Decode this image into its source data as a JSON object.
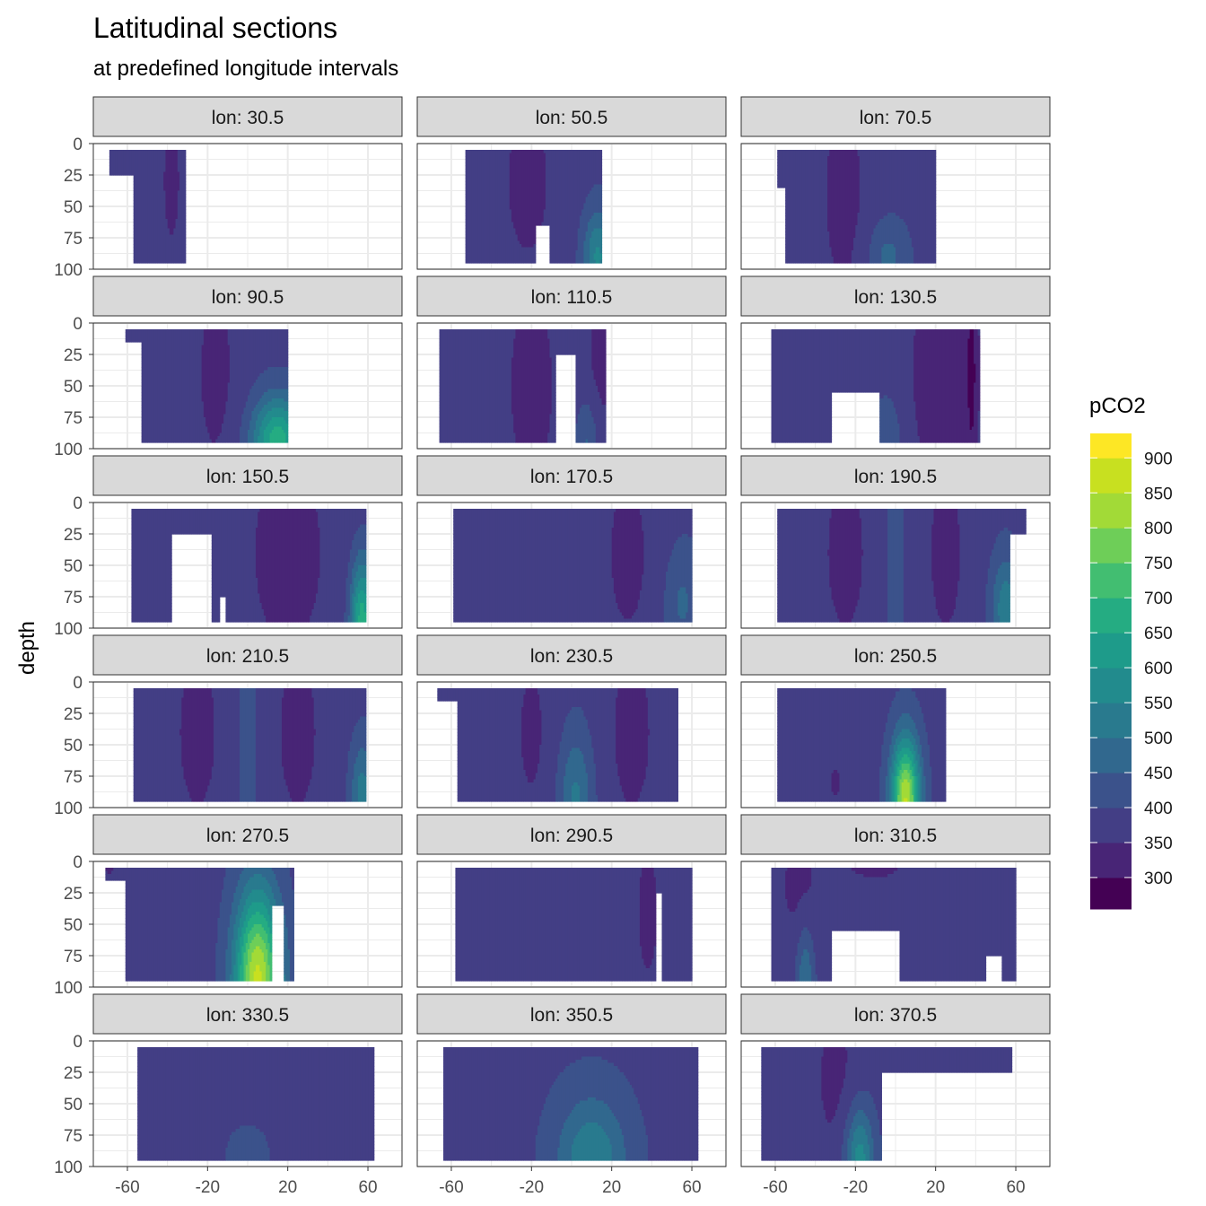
{
  "chart_data": {
    "type": "heatmap",
    "title": "Latitudinal sections",
    "subtitle": "at predefined longitude intervals",
    "xlabel": "",
    "ylabel": "depth",
    "facet_label_prefix": "lon: ",
    "xlim": [
      -77,
      77
    ],
    "ylim": [
      0,
      100
    ],
    "y_reversed": true,
    "x_ticks": [
      -60,
      -20,
      20,
      60
    ],
    "y_ticks": [
      0,
      25,
      50,
      75,
      100
    ],
    "grid": "on",
    "legend": {
      "title": "pCO2",
      "position": "right",
      "breaks": [
        900,
        850,
        800,
        750,
        700,
        650,
        600,
        550,
        500,
        450,
        400,
        350,
        300
      ],
      "colors": [
        "#fde725",
        "#c8e020",
        "#a2da37",
        "#6ece58",
        "#42be71",
        "#25ac82",
        "#1e9b8a",
        "#228b8d",
        "#297a8e",
        "#31688e",
        "#3b528b",
        "#433e85",
        "#482576",
        "#440154"
      ]
    },
    "panels": [
      {
        "lon": "30.5",
        "base": 385,
        "x_min": -69,
        "x_max": -31,
        "max_depth": 95,
        "gaps": [
          {
            "x": [
              -69,
              -57
            ],
            "y": [
              25,
              100
            ]
          }
        ],
        "features": [
          {
            "x": -38,
            "depth": 30,
            "amp": -45,
            "sx": 5,
            "sd": 60
          }
        ]
      },
      {
        "lon": "50.5",
        "base": 390,
        "x_min": -53,
        "x_max": 15,
        "max_depth": 95,
        "gaps": [
          {
            "x": [
              -18,
              -11
            ],
            "y": [
              65,
              100
            ]
          }
        ],
        "features": [
          {
            "x": -22,
            "depth": 30,
            "amp": -50,
            "sx": 14,
            "sd": 80
          },
          {
            "x": 13,
            "depth": 90,
            "amp": 170,
            "sx": 5,
            "sd": 25
          }
        ]
      },
      {
        "lon": "70.5",
        "base": 385,
        "x_min": -59,
        "x_max": 20,
        "max_depth": 95,
        "gaps": [
          {
            "x": [
              -59,
              -55
            ],
            "y": [
              35,
              100
            ]
          }
        ],
        "features": [
          {
            "x": -26,
            "depth": 40,
            "amp": -50,
            "sx": 10,
            "sd": 80
          },
          {
            "x": -4,
            "depth": 90,
            "amp": 80,
            "sx": 7,
            "sd": 20
          }
        ]
      },
      {
        "lon": "90.5",
        "base": 385,
        "x_min": -61,
        "x_max": 20,
        "max_depth": 95,
        "gaps": [
          {
            "x": [
              -61,
              -53
            ],
            "y": [
              15,
              100
            ]
          }
        ],
        "features": [
          {
            "x": -16,
            "depth": 40,
            "amp": -45,
            "sx": 10,
            "sd": 80
          },
          {
            "x": 15,
            "depth": 95,
            "amp": 300,
            "sx": 9,
            "sd": 25
          }
        ]
      },
      {
        "lon": "110.5",
        "base": 385,
        "x_min": -66,
        "x_max": 17,
        "max_depth": 95,
        "gaps": [
          {
            "x": [
              -8,
              2
            ],
            "y": [
              25,
              100
            ]
          }
        ],
        "features": [
          {
            "x": -20,
            "depth": 50,
            "amp": -50,
            "sx": 12,
            "sd": 80
          },
          {
            "x": 14,
            "depth": 40,
            "amp": -45,
            "sx": 6,
            "sd": 80
          },
          {
            "x": 8,
            "depth": 95,
            "amp": 90,
            "sx": 4,
            "sd": 25
          }
        ]
      },
      {
        "lon": "130.5",
        "base": 385,
        "x_min": -62,
        "x_max": 42,
        "max_depth": 95,
        "gaps": [
          {
            "x": [
              -32,
              -8
            ],
            "y": [
              55,
              100
            ]
          }
        ],
        "features": [
          {
            "x": 22,
            "depth": 40,
            "amp": -55,
            "sx": 14,
            "sd": 90
          },
          {
            "x": 38,
            "depth": 40,
            "amp": -80,
            "sx": 2,
            "sd": 60
          },
          {
            "x": -4,
            "depth": 95,
            "amp": 70,
            "sx": 5,
            "sd": 25
          }
        ]
      },
      {
        "lon": "150.5",
        "base": 380,
        "x_min": -58,
        "x_max": 59,
        "max_depth": 95,
        "gaps": [
          {
            "x": [
              -38,
              -18
            ],
            "y": [
              25,
              100
            ]
          },
          {
            "x": [
              -14,
              -11
            ],
            "y": [
              75,
              100
            ]
          }
        ],
        "features": [
          {
            "x": 20,
            "depth": 40,
            "amp": -45,
            "sx": 18,
            "sd": 80
          },
          {
            "x": 57,
            "depth": 95,
            "amp": 300,
            "sx": 4,
            "sd": 35
          }
        ]
      },
      {
        "lon": "170.5",
        "base": 390,
        "x_min": -59,
        "x_max": 60,
        "max_depth": 95,
        "gaps": [],
        "features": [
          {
            "x": -25,
            "depth": 40,
            "amp": -40,
            "sx": 14,
            "sd": 80
          },
          {
            "x": 28,
            "depth": 40,
            "amp": -50,
            "sx": 12,
            "sd": 80
          },
          {
            "x": 55,
            "depth": 80,
            "amp": 70,
            "sx": 6,
            "sd": 30
          }
        ]
      },
      {
        "lon": "190.5",
        "base": 385,
        "x_min": -59,
        "x_max": 65,
        "max_depth": 95,
        "gaps": [
          {
            "x": [
              57,
              65
            ],
            "y": [
              25,
              100
            ]
          }
        ],
        "features": [
          {
            "x": -25,
            "depth": 40,
            "amp": -45,
            "sx": 12,
            "sd": 80
          },
          {
            "x": 25,
            "depth": 40,
            "amp": -45,
            "sx": 10,
            "sd": 80
          },
          {
            "x": 0,
            "depth": 50,
            "amp": 40,
            "sx": 4,
            "sd": 90
          },
          {
            "x": 55,
            "depth": 85,
            "amp": 150,
            "sx": 5,
            "sd": 30
          }
        ]
      },
      {
        "lon": "210.5",
        "base": 385,
        "x_min": -57,
        "x_max": 59,
        "max_depth": 95,
        "gaps": [],
        "features": [
          {
            "x": -25,
            "depth": 40,
            "amp": -45,
            "sx": 12,
            "sd": 80
          },
          {
            "x": 25,
            "depth": 40,
            "amp": -45,
            "sx": 12,
            "sd": 80
          },
          {
            "x": 0,
            "depth": 50,
            "amp": 40,
            "sx": 5,
            "sd": 90
          },
          {
            "x": 57,
            "depth": 90,
            "amp": 140,
            "sx": 4,
            "sd": 30
          }
        ]
      },
      {
        "lon": "230.5",
        "base": 385,
        "x_min": -67,
        "x_max": 53,
        "max_depth": 95,
        "gaps": [
          {
            "x": [
              -67,
              -57
            ],
            "y": [
              15,
              100
            ]
          }
        ],
        "features": [
          {
            "x": -20,
            "depth": 40,
            "amp": -40,
            "sx": 10,
            "sd": 80
          },
          {
            "x": 30,
            "depth": 40,
            "amp": -45,
            "sx": 12,
            "sd": 80
          },
          {
            "x": 2,
            "depth": 95,
            "amp": 130,
            "sx": 6,
            "sd": 40
          }
        ]
      },
      {
        "lon": "250.5",
        "base": 385,
        "x_min": -59,
        "x_max": 25,
        "max_depth": 95,
        "gaps": [],
        "features": [
          {
            "x": -30,
            "depth": 80,
            "amp": -40,
            "sx": 4,
            "sd": 20
          },
          {
            "x": 5,
            "depth": 95,
            "amp": 470,
            "sx": 5,
            "sd": 35
          }
        ]
      },
      {
        "lon": "270.5",
        "base": 385,
        "x_min": -71,
        "x_max": 23,
        "max_depth": 95,
        "gaps": [
          {
            "x": [
              -71,
              -61
            ],
            "y": [
              15,
              100
            ]
          },
          {
            "x": [
              12,
              18
            ],
            "y": [
              35,
              100
            ]
          }
        ],
        "features": [
          {
            "x": -69,
            "depth": 5,
            "amp": -40,
            "sx": 3,
            "sd": 10
          },
          {
            "x": 5,
            "depth": 95,
            "amp": 480,
            "sx": 8,
            "sd": 50
          }
        ]
      },
      {
        "lon": "290.5",
        "base": 380,
        "x_min": -69,
        "x_max": 60,
        "max_depth": 95,
        "gaps": [
          {
            "x": [
              -69,
              -58
            ],
            "y": [
              0,
              100
            ]
          },
          {
            "x": [
              42,
              45
            ],
            "y": [
              25,
              100
            ]
          }
        ],
        "features": [
          {
            "x": 38,
            "depth": 40,
            "amp": -35,
            "sx": 8,
            "sd": 80
          }
        ]
      },
      {
        "lon": "310.5",
        "base": 385,
        "x_min": -62,
        "x_max": 60,
        "max_depth": 95,
        "gaps": [
          {
            "x": [
              -32,
              2
            ],
            "y": [
              55,
              100
            ]
          },
          {
            "x": [
              45,
              53
            ],
            "y": [
              75,
              100
            ]
          }
        ],
        "features": [
          {
            "x": -48,
            "depth": 20,
            "amp": -45,
            "sx": 10,
            "sd": 40
          },
          {
            "x": -10,
            "depth": 0,
            "amp": -80,
            "sx": 10,
            "sd": 10
          },
          {
            "x": -45,
            "depth": 95,
            "amp": 120,
            "sx": 3,
            "sd": 30
          }
        ]
      },
      {
        "lon": "330.5",
        "base": 390,
        "x_min": -55,
        "x_max": 63,
        "max_depth": 95,
        "gaps": [],
        "features": [
          {
            "x": -38,
            "depth": 50,
            "amp": -40,
            "sx": 6,
            "sd": 90
          },
          {
            "x": 40,
            "depth": 90,
            "amp": -40,
            "sx": 5,
            "sd": 20
          },
          {
            "x": 0,
            "depth": 95,
            "amp": 60,
            "sx": 6,
            "sd": 15
          }
        ]
      },
      {
        "lon": "350.5",
        "base": 390,
        "x_min": -64,
        "x_max": 63,
        "max_depth": 95,
        "gaps": [],
        "features": [
          {
            "x": 10,
            "depth": 95,
            "amp": 160,
            "sx": 12,
            "sd": 35
          }
        ]
      },
      {
        "lon": "370.5",
        "base": 385,
        "x_min": -67,
        "x_max": 58,
        "max_depth": 95,
        "gaps": [
          {
            "x": [
              -7,
              58
            ],
            "y": [
              25,
              100
            ]
          }
        ],
        "features": [
          {
            "x": -30,
            "depth": 30,
            "amp": -45,
            "sx": 10,
            "sd": 60
          },
          {
            "x": 20,
            "depth": 15,
            "amp": -30,
            "sx": 15,
            "sd": 10
          },
          {
            "x": -18,
            "depth": 95,
            "amp": 200,
            "sx": 5,
            "sd": 30
          }
        ]
      }
    ]
  }
}
